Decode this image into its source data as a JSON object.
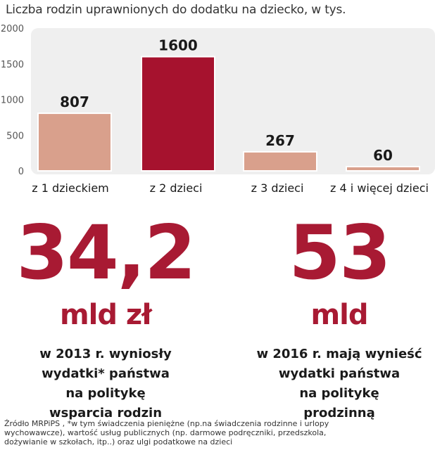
{
  "chart_data": {
    "type": "bar",
    "title": "Liczba rodzin uprawnionych do dodatku na dziecko, w tys.",
    "categories": [
      "z 1 dzieckiem",
      "z 2 dzieci",
      "z 3 dzieci",
      "z 4 i więcej dzieci"
    ],
    "values": [
      807,
      1600,
      267,
      60
    ],
    "value_labels": [
      "807",
      "1600",
      "267",
      "60"
    ],
    "ylim": [
      0,
      2000
    ],
    "yticks": [
      0,
      500,
      1000,
      1500,
      2000
    ],
    "ytick_labels": [
      "0",
      "500",
      "1000",
      "1500",
      "2000"
    ],
    "grid": false,
    "highlight_index": 1,
    "colors": {
      "bar": "#d9a08c",
      "bar_highlight": "#a6122e",
      "plot_background": "#efefef"
    }
  },
  "stats": [
    {
      "value": "34,2",
      "unit": "mld zł",
      "description": [
        "w 2013 r. wyniosły",
        "wydatki* państwa",
        "na politykę",
        "wsparcia rodzin"
      ]
    },
    {
      "value": "53",
      "unit": "mld",
      "description": [
        "w 2016 r. mają wynieść",
        "wydatki państwa",
        "na politykę",
        "prodzinną"
      ]
    }
  ],
  "footnote": [
    "Źródło MRPiPS , *w tym świadczenia pieniężne (np.na świadczenia rodzinne i urlopy",
    "wychowawcze), wartość usług publicznych (np. darmowe podręczniki, przedszkola,",
    "dożywianie w szkołach, itp..) oraz ulgi podatkowe na dzieci"
  ]
}
